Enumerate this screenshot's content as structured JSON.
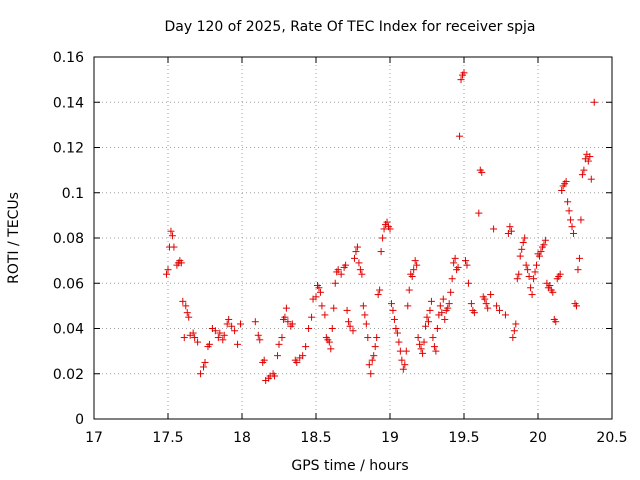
{
  "chart_data": {
    "type": "scatter",
    "title": "Day 120 of 2025, Rate Of TEC Index for receiver spja",
    "xlabel": "GPS time / hours",
    "ylabel": "ROTI / TECUs",
    "xlim": [
      17,
      20.5
    ],
    "ylim": [
      0,
      0.16
    ],
    "grid": true,
    "marker": "+",
    "marker_color": "#e00000",
    "xticks": [
      {
        "value": 17,
        "label": "17"
      },
      {
        "value": 17.5,
        "label": "17.5"
      },
      {
        "value": 18,
        "label": "18"
      },
      {
        "value": 18.5,
        "label": "18.5"
      },
      {
        "value": 19,
        "label": "19"
      },
      {
        "value": 19.5,
        "label": "19.5"
      },
      {
        "value": 20,
        "label": "20"
      },
      {
        "value": 20.5,
        "label": "20.5"
      }
    ],
    "yticks": [
      {
        "value": 0,
        "label": "0"
      },
      {
        "value": 0.02,
        "label": "0.02"
      },
      {
        "value": 0.04,
        "label": "0.04"
      },
      {
        "value": 0.06,
        "label": "0.06"
      },
      {
        "value": 0.08,
        "label": "0.08"
      },
      {
        "value": 0.1,
        "label": "0.1"
      },
      {
        "value": 0.12,
        "label": "0.12"
      },
      {
        "value": 0.14,
        "label": "0.14"
      },
      {
        "value": 0.16,
        "label": "0.16"
      }
    ],
    "series": [
      {
        "name": "ROTI",
        "points": [
          [
            17.49,
            0.064
          ],
          [
            17.5,
            0.066
          ],
          [
            17.51,
            0.076
          ],
          [
            17.52,
            0.083
          ],
          [
            17.53,
            0.081
          ],
          [
            17.54,
            0.076
          ],
          [
            17.56,
            0.068
          ],
          [
            17.57,
            0.069
          ],
          [
            17.58,
            0.07
          ],
          [
            17.59,
            0.069
          ],
          [
            17.6,
            0.052
          ],
          [
            17.61,
            0.036
          ],
          [
            17.62,
            0.05
          ],
          [
            17.63,
            0.047
          ],
          [
            17.64,
            0.045
          ],
          [
            17.65,
            0.037
          ],
          [
            17.67,
            0.038
          ],
          [
            17.68,
            0.036
          ],
          [
            17.7,
            0.034
          ],
          [
            17.72,
            0.02
          ],
          [
            17.74,
            0.023
          ],
          [
            17.75,
            0.025
          ],
          [
            17.77,
            0.032
          ],
          [
            17.78,
            0.033
          ],
          [
            17.8,
            0.04
          ],
          [
            17.82,
            0.039
          ],
          [
            17.84,
            0.036
          ],
          [
            17.85,
            0.038
          ],
          [
            17.87,
            0.035
          ],
          [
            17.88,
            0.037
          ],
          [
            17.9,
            0.042
          ],
          [
            17.91,
            0.044
          ],
          [
            17.93,
            0.041
          ],
          [
            17.95,
            0.039
          ],
          [
            17.97,
            0.033
          ],
          [
            17.99,
            0.042
          ],
          [
            18.09,
            0.043
          ],
          [
            18.11,
            0.037
          ],
          [
            18.12,
            0.035
          ],
          [
            18.14,
            0.025
          ],
          [
            18.15,
            0.026
          ],
          [
            18.16,
            0.017
          ],
          [
            18.18,
            0.018
          ],
          [
            18.19,
            0.019
          ],
          [
            18.21,
            0.02
          ],
          [
            18.22,
            0.019
          ],
          [
            18.24,
            0.028
          ],
          [
            18.25,
            0.033
          ],
          [
            18.27,
            0.036
          ],
          [
            18.28,
            0.044
          ],
          [
            18.29,
            0.045
          ],
          [
            18.3,
            0.049
          ],
          [
            18.31,
            0.043
          ],
          [
            18.33,
            0.041
          ],
          [
            18.34,
            0.042
          ],
          [
            18.36,
            0.026
          ],
          [
            18.37,
            0.025
          ],
          [
            18.39,
            0.027
          ],
          [
            18.41,
            0.028
          ],
          [
            18.43,
            0.032
          ],
          [
            18.45,
            0.04
          ],
          [
            18.47,
            0.045
          ],
          [
            18.48,
            0.053
          ],
          [
            18.5,
            0.054
          ],
          [
            18.51,
            0.059
          ],
          [
            18.52,
            0.058
          ],
          [
            18.53,
            0.056
          ],
          [
            18.54,
            0.05
          ],
          [
            18.56,
            0.046
          ],
          [
            18.57,
            0.036
          ],
          [
            18.58,
            0.035
          ],
          [
            18.59,
            0.034
          ],
          [
            18.6,
            0.031
          ],
          [
            18.61,
            0.04
          ],
          [
            18.62,
            0.049
          ],
          [
            18.63,
            0.06
          ],
          [
            18.64,
            0.065
          ],
          [
            18.65,
            0.066
          ],
          [
            18.67,
            0.064
          ],
          [
            18.69,
            0.067
          ],
          [
            18.7,
            0.068
          ],
          [
            18.71,
            0.048
          ],
          [
            18.72,
            0.043
          ],
          [
            18.73,
            0.041
          ],
          [
            18.75,
            0.039
          ],
          [
            18.76,
            0.071
          ],
          [
            18.77,
            0.074
          ],
          [
            18.78,
            0.076
          ],
          [
            18.79,
            0.069
          ],
          [
            18.8,
            0.066
          ],
          [
            18.81,
            0.064
          ],
          [
            18.82,
            0.05
          ],
          [
            18.83,
            0.046
          ],
          [
            18.84,
            0.042
          ],
          [
            18.85,
            0.036
          ],
          [
            18.86,
            0.024
          ],
          [
            18.87,
            0.02
          ],
          [
            18.88,
            0.026
          ],
          [
            18.89,
            0.028
          ],
          [
            18.9,
            0.032
          ],
          [
            18.91,
            0.036
          ],
          [
            18.92,
            0.055
          ],
          [
            18.93,
            0.057
          ],
          [
            18.94,
            0.074
          ],
          [
            18.95,
            0.08
          ],
          [
            18.96,
            0.084
          ],
          [
            18.97,
            0.086
          ],
          [
            18.98,
            0.087
          ],
          [
            18.99,
            0.085
          ],
          [
            19.0,
            0.084
          ],
          [
            19.01,
            0.051
          ],
          [
            19.02,
            0.048
          ],
          [
            19.03,
            0.044
          ],
          [
            19.04,
            0.04
          ],
          [
            19.05,
            0.038
          ],
          [
            19.06,
            0.034
          ],
          [
            19.07,
            0.03
          ],
          [
            19.08,
            0.026
          ],
          [
            19.09,
            0.022
          ],
          [
            19.1,
            0.024
          ],
          [
            19.11,
            0.03
          ],
          [
            19.12,
            0.05
          ],
          [
            19.13,
            0.057
          ],
          [
            19.14,
            0.064
          ],
          [
            19.15,
            0.063
          ],
          [
            19.16,
            0.066
          ],
          [
            19.17,
            0.07
          ],
          [
            19.18,
            0.068
          ],
          [
            19.19,
            0.036
          ],
          [
            19.2,
            0.033
          ],
          [
            19.21,
            0.031
          ],
          [
            19.22,
            0.029
          ],
          [
            19.23,
            0.034
          ],
          [
            19.24,
            0.041
          ],
          [
            19.25,
            0.045
          ],
          [
            19.26,
            0.043
          ],
          [
            19.27,
            0.048
          ],
          [
            19.28,
            0.052
          ],
          [
            19.29,
            0.036
          ],
          [
            19.3,
            0.032
          ],
          [
            19.31,
            0.03
          ],
          [
            19.32,
            0.04
          ],
          [
            19.33,
            0.046
          ],
          [
            19.34,
            0.05
          ],
          [
            19.35,
            0.047
          ],
          [
            19.36,
            0.053
          ],
          [
            19.37,
            0.044
          ],
          [
            19.38,
            0.048
          ],
          [
            19.39,
            0.049
          ],
          [
            19.4,
            0.051
          ],
          [
            19.41,
            0.056
          ],
          [
            19.42,
            0.062
          ],
          [
            19.43,
            0.069
          ],
          [
            19.44,
            0.071
          ],
          [
            19.45,
            0.066
          ],
          [
            19.46,
            0.067
          ],
          [
            19.47,
            0.125
          ],
          [
            19.48,
            0.15
          ],
          [
            19.49,
            0.152
          ],
          [
            19.5,
            0.153
          ],
          [
            19.51,
            0.07
          ],
          [
            19.52,
            0.068
          ],
          [
            19.53,
            0.06
          ],
          [
            19.55,
            0.051
          ],
          [
            19.56,
            0.048
          ],
          [
            19.57,
            0.047
          ],
          [
            19.6,
            0.091
          ],
          [
            19.61,
            0.11
          ],
          [
            19.62,
            0.109
          ],
          [
            19.63,
            0.054
          ],
          [
            19.64,
            0.053
          ],
          [
            19.65,
            0.051
          ],
          [
            19.66,
            0.049
          ],
          [
            19.68,
            0.055
          ],
          [
            19.7,
            0.084
          ],
          [
            19.72,
            0.05
          ],
          [
            19.74,
            0.048
          ],
          [
            19.78,
            0.046
          ],
          [
            19.8,
            0.082
          ],
          [
            19.81,
            0.085
          ],
          [
            19.82,
            0.083
          ],
          [
            19.83,
            0.036
          ],
          [
            19.84,
            0.039
          ],
          [
            19.85,
            0.042
          ],
          [
            19.86,
            0.062
          ],
          [
            19.87,
            0.064
          ],
          [
            19.88,
            0.072
          ],
          [
            19.89,
            0.075
          ],
          [
            19.9,
            0.078
          ],
          [
            19.91,
            0.08
          ],
          [
            19.92,
            0.068
          ],
          [
            19.93,
            0.066
          ],
          [
            19.94,
            0.063
          ],
          [
            19.95,
            0.058
          ],
          [
            19.96,
            0.055
          ],
          [
            19.97,
            0.062
          ],
          [
            19.98,
            0.065
          ],
          [
            19.99,
            0.068
          ],
          [
            20.0,
            0.073
          ],
          [
            20.01,
            0.072
          ],
          [
            20.02,
            0.074
          ],
          [
            20.03,
            0.076
          ],
          [
            20.04,
            0.077
          ],
          [
            20.05,
            0.079
          ],
          [
            20.06,
            0.06
          ],
          [
            20.07,
            0.058
          ],
          [
            20.08,
            0.059
          ],
          [
            20.09,
            0.057
          ],
          [
            20.1,
            0.056
          ],
          [
            20.11,
            0.044
          ],
          [
            20.12,
            0.043
          ],
          [
            20.13,
            0.062
          ],
          [
            20.14,
            0.063
          ],
          [
            20.15,
            0.064
          ],
          [
            20.16,
            0.101
          ],
          [
            20.17,
            0.103
          ],
          [
            20.18,
            0.104
          ],
          [
            20.19,
            0.105
          ],
          [
            20.2,
            0.096
          ],
          [
            20.21,
            0.092
          ],
          [
            20.22,
            0.088
          ],
          [
            20.23,
            0.085
          ],
          [
            20.24,
            0.082
          ],
          [
            20.25,
            0.051
          ],
          [
            20.26,
            0.05
          ],
          [
            20.27,
            0.066
          ],
          [
            20.28,
            0.071
          ],
          [
            20.29,
            0.088
          ],
          [
            20.3,
            0.108
          ],
          [
            20.31,
            0.11
          ],
          [
            20.32,
            0.115
          ],
          [
            20.33,
            0.117
          ],
          [
            20.34,
            0.114
          ],
          [
            20.35,
            0.116
          ],
          [
            20.36,
            0.106
          ],
          [
            20.38,
            0.14
          ]
        ]
      }
    ]
  }
}
